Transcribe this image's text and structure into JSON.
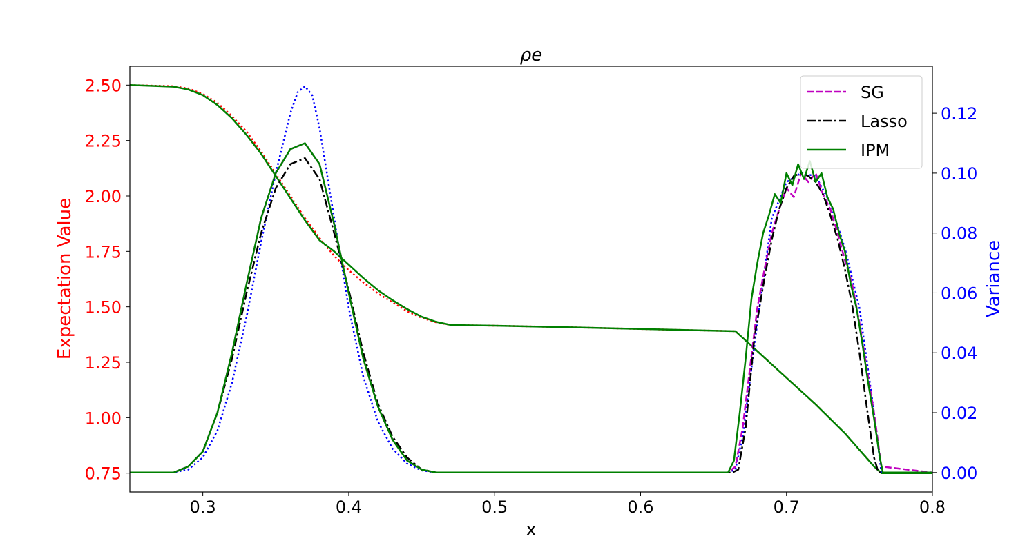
{
  "chart_data": {
    "type": "line",
    "title": "ρe",
    "xlabel": "x",
    "ylabel_left": "Expectation Value",
    "ylabel_right": "Variance",
    "xlim": [
      0.25,
      0.8
    ],
    "ylim_left": [
      0.665,
      2.585
    ],
    "ylim_right": [
      -0.0065,
      0.1357
    ],
    "x_ticks": [
      0.3,
      0.4,
      0.5,
      0.6,
      0.7,
      0.8
    ],
    "x_tick_labels": [
      "0.3",
      "0.4",
      "0.5",
      "0.6",
      "0.7",
      "0.8"
    ],
    "y_left_ticks": [
      0.75,
      1.0,
      1.25,
      1.5,
      1.75,
      2.0,
      2.25,
      2.5
    ],
    "y_left_tick_labels": [
      "0.75",
      "1.00",
      "1.25",
      "1.50",
      "1.75",
      "2.00",
      "2.25",
      "2.50"
    ],
    "y_right_ticks": [
      0.0,
      0.02,
      0.04,
      0.06,
      0.08,
      0.1,
      0.12
    ],
    "y_right_tick_labels": [
      "0.00",
      "0.02",
      "0.04",
      "0.06",
      "0.08",
      "0.10",
      "0.12"
    ],
    "left_axis_color": "#ff0000",
    "right_axis_color": "#0000ff",
    "grid": false,
    "legend_position": "top-right",
    "legend": [
      {
        "label": "SG",
        "color": "#bf00bf",
        "style": "dashed"
      },
      {
        "label": "Lasso",
        "color": "#000000",
        "style": "dashdot"
      },
      {
        "label": "IPM",
        "color": "#008000",
        "style": "solid"
      }
    ],
    "series": [
      {
        "axis": "left",
        "color": "#ff0000",
        "style": "dotted",
        "x": [
          0.25,
          0.28,
          0.29,
          0.3,
          0.31,
          0.32,
          0.33,
          0.34,
          0.35,
          0.36,
          0.37,
          0.38,
          0.39,
          0.4,
          0.41,
          0.42,
          0.43,
          0.44,
          0.45,
          0.46,
          0.47,
          0.5,
          0.55,
          0.6,
          0.665,
          0.68,
          0.7,
          0.72,
          0.74,
          0.76,
          0.765,
          0.8
        ],
        "y": [
          2.5,
          2.495,
          2.485,
          2.46,
          2.42,
          2.36,
          2.29,
          2.2,
          2.1,
          2.0,
          1.9,
          1.81,
          1.73,
          1.665,
          1.61,
          1.56,
          1.52,
          1.48,
          1.45,
          1.43,
          1.418,
          1.415,
          1.408,
          1.4,
          1.39,
          1.3,
          1.18,
          1.06,
          0.93,
          0.78,
          0.75,
          0.75
        ]
      },
      {
        "axis": "left",
        "color": "#008000",
        "style": "solid",
        "x": [
          0.25,
          0.28,
          0.29,
          0.3,
          0.31,
          0.32,
          0.33,
          0.34,
          0.35,
          0.36,
          0.37,
          0.38,
          0.39,
          0.4,
          0.41,
          0.42,
          0.43,
          0.44,
          0.45,
          0.46,
          0.47,
          0.5,
          0.55,
          0.6,
          0.665,
          0.68,
          0.7,
          0.72,
          0.74,
          0.76,
          0.765,
          0.8
        ],
        "y": [
          2.5,
          2.493,
          2.48,
          2.455,
          2.41,
          2.35,
          2.275,
          2.19,
          2.09,
          1.99,
          1.89,
          1.8,
          1.75,
          1.69,
          1.63,
          1.575,
          1.53,
          1.49,
          1.455,
          1.432,
          1.418,
          1.415,
          1.408,
          1.4,
          1.39,
          1.3,
          1.18,
          1.06,
          0.93,
          0.78,
          0.75,
          0.75
        ]
      },
      {
        "axis": "right",
        "color": "#0000ff",
        "style": "dotted",
        "x": [
          0.25,
          0.28,
          0.29,
          0.3,
          0.31,
          0.32,
          0.33,
          0.34,
          0.35,
          0.36,
          0.365,
          0.37,
          0.375,
          0.38,
          0.39,
          0.4,
          0.41,
          0.42,
          0.43,
          0.44,
          0.45,
          0.46,
          0.47,
          0.5,
          0.66,
          0.665,
          0.67,
          0.68,
          0.69,
          0.7,
          0.71,
          0.72,
          0.73,
          0.74,
          0.75,
          0.76,
          0.765,
          0.8
        ],
        "y": [
          0.0,
          0.0,
          0.001,
          0.005,
          0.014,
          0.03,
          0.052,
          0.077,
          0.1,
          0.12,
          0.127,
          0.129,
          0.126,
          0.115,
          0.085,
          0.055,
          0.032,
          0.017,
          0.008,
          0.003,
          0.0007,
          0.0,
          0.0,
          0.0,
          0.0,
          0.001,
          0.012,
          0.05,
          0.085,
          0.097,
          0.1,
          0.099,
          0.09,
          0.075,
          0.055,
          0.02,
          0.0,
          0.0
        ]
      },
      {
        "axis": "right",
        "color": "#bf00bf",
        "style": "dashed",
        "x": [
          0.25,
          0.28,
          0.29,
          0.3,
          0.31,
          0.32,
          0.33,
          0.34,
          0.35,
          0.36,
          0.37,
          0.38,
          0.39,
          0.4,
          0.41,
          0.42,
          0.43,
          0.44,
          0.45,
          0.46,
          0.47,
          0.5,
          0.66,
          0.665,
          0.67,
          0.675,
          0.68,
          0.685,
          0.69,
          0.695,
          0.7,
          0.705,
          0.71,
          0.715,
          0.72,
          0.725,
          0.73,
          0.735,
          0.74,
          0.745,
          0.75,
          0.755,
          0.76,
          0.765,
          0.8
        ],
        "y": [
          0.0,
          0.0,
          0.002,
          0.007,
          0.02,
          0.04,
          0.063,
          0.085,
          0.1,
          0.108,
          0.11,
          0.103,
          0.083,
          0.06,
          0.038,
          0.022,
          0.011,
          0.004,
          0.001,
          0.0,
          0.0,
          0.0,
          0.0,
          0.002,
          0.015,
          0.035,
          0.055,
          0.068,
          0.08,
          0.088,
          0.095,
          0.092,
          0.1,
          0.097,
          0.1,
          0.093,
          0.088,
          0.08,
          0.071,
          0.063,
          0.05,
          0.035,
          0.02,
          0.002,
          0.0
        ]
      },
      {
        "axis": "right",
        "color": "#000000",
        "style": "dashdot",
        "x": [
          0.25,
          0.28,
          0.29,
          0.3,
          0.31,
          0.32,
          0.33,
          0.34,
          0.35,
          0.36,
          0.37,
          0.38,
          0.39,
          0.4,
          0.41,
          0.42,
          0.43,
          0.44,
          0.45,
          0.46,
          0.47,
          0.5,
          0.663,
          0.667,
          0.672,
          0.678,
          0.685,
          0.69,
          0.695,
          0.7,
          0.705,
          0.71,
          0.715,
          0.72,
          0.725,
          0.73,
          0.735,
          0.74,
          0.745,
          0.75,
          0.755,
          0.76,
          0.763,
          0.8
        ],
        "y": [
          0.0,
          0.0,
          0.002,
          0.007,
          0.02,
          0.038,
          0.06,
          0.08,
          0.095,
          0.103,
          0.105,
          0.098,
          0.08,
          0.061,
          0.04,
          0.023,
          0.012,
          0.005,
          0.001,
          0.0,
          0.0,
          0.0,
          0.0,
          0.001,
          0.015,
          0.045,
          0.065,
          0.078,
          0.088,
          0.095,
          0.099,
          0.1,
          0.099,
          0.097,
          0.093,
          0.086,
          0.078,
          0.068,
          0.056,
          0.04,
          0.022,
          0.005,
          0.0,
          0.0
        ]
      },
      {
        "axis": "right",
        "color": "#008000",
        "style": "solid",
        "x": [
          0.25,
          0.28,
          0.29,
          0.3,
          0.31,
          0.32,
          0.33,
          0.34,
          0.35,
          0.36,
          0.37,
          0.38,
          0.39,
          0.4,
          0.41,
          0.42,
          0.43,
          0.44,
          0.45,
          0.46,
          0.47,
          0.5,
          0.66,
          0.664,
          0.668,
          0.672,
          0.676,
          0.68,
          0.684,
          0.688,
          0.692,
          0.696,
          0.7,
          0.704,
          0.708,
          0.712,
          0.716,
          0.72,
          0.724,
          0.728,
          0.732,
          0.736,
          0.74,
          0.744,
          0.748,
          0.752,
          0.756,
          0.76,
          0.764,
          0.766,
          0.8
        ],
        "y": [
          0.0,
          0.0,
          0.002,
          0.007,
          0.02,
          0.04,
          0.063,
          0.085,
          0.1,
          0.108,
          0.11,
          0.103,
          0.083,
          0.06,
          0.038,
          0.022,
          0.011,
          0.004,
          0.001,
          0.0,
          0.0,
          0.0,
          0.0,
          0.004,
          0.02,
          0.038,
          0.058,
          0.07,
          0.08,
          0.086,
          0.093,
          0.09,
          0.1,
          0.096,
          0.103,
          0.098,
          0.104,
          0.097,
          0.1,
          0.092,
          0.088,
          0.08,
          0.074,
          0.063,
          0.055,
          0.043,
          0.03,
          0.018,
          0.005,
          0.0,
          0.0
        ]
      }
    ]
  }
}
